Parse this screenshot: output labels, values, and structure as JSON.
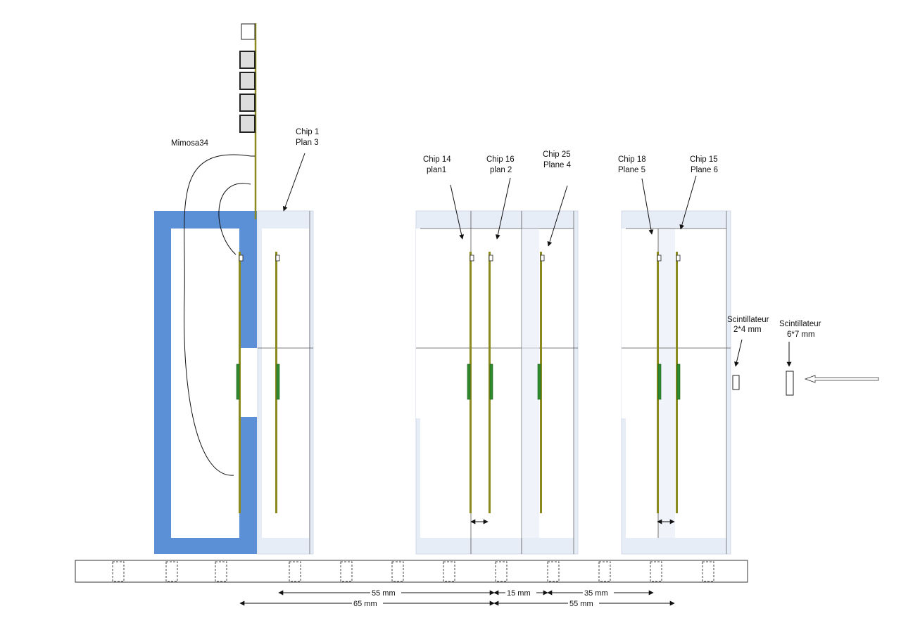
{
  "labels": {
    "mimosa": "Mimosa34",
    "chip1": [
      "Chip 1",
      "Plan 3"
    ],
    "chip14": [
      "Chip 14",
      "plan1"
    ],
    "chip16": [
      "Chip 16",
      "plan 2"
    ],
    "chip25": [
      "Chip 25",
      "Plane 4"
    ],
    "chip18": [
      "Chip 18",
      "Plane 5"
    ],
    "chip15": [
      "Chip 15",
      "Plane 6"
    ],
    "scint1": [
      "Scintillateur",
      "2*4 mm"
    ],
    "scint2": [
      "Scintillateur",
      "6*7 mm"
    ]
  },
  "dimensions": {
    "d55a": "55 mm",
    "d15": "15 mm",
    "d35": "35 mm",
    "d65": "65 mm",
    "d55b": "55 mm"
  },
  "colors": {
    "frame_blue": "#5b8fd6",
    "frame_light": "#e6edf7",
    "board_olive": "#8a8a1e",
    "sensor_green": "#2e8b2e",
    "outline": "#333333"
  }
}
